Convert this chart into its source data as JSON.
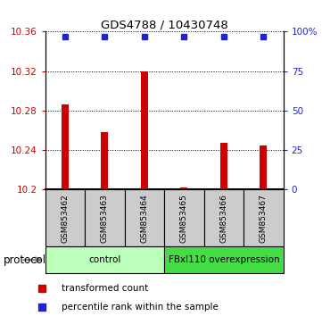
{
  "title": "GDS4788 / 10430748",
  "samples": [
    "GSM853462",
    "GSM853463",
    "GSM853464",
    "GSM853465",
    "GSM853466",
    "GSM853467"
  ],
  "red_values": [
    10.286,
    10.258,
    10.32,
    10.202,
    10.247,
    10.245
  ],
  "blue_values": [
    97,
    97,
    97,
    97,
    97,
    97
  ],
  "ylim_left": [
    10.2,
    10.36
  ],
  "ylim_right": [
    0,
    100
  ],
  "yticks_left": [
    10.2,
    10.24,
    10.28,
    10.32,
    10.36
  ],
  "yticks_right": [
    0,
    25,
    50,
    75,
    100
  ],
  "ytick_labels_left": [
    "10.2",
    "10.24",
    "10.28",
    "10.32",
    "10.36"
  ],
  "ytick_labels_right": [
    "0",
    "25",
    "50",
    "75",
    "100%"
  ],
  "red_color": "#cc0000",
  "blue_color": "#2222cc",
  "bar_base": 10.2,
  "groups": [
    {
      "label": "control",
      "indices": [
        0,
        1,
        2
      ],
      "color": "#bbffbb"
    },
    {
      "label": "FBxl110 overexpression",
      "indices": [
        3,
        4,
        5
      ],
      "color": "#44dd44"
    }
  ],
  "protocol_label": "protocol",
  "legend_items": [
    {
      "color": "#cc0000",
      "label": "transformed count"
    },
    {
      "color": "#2222cc",
      "label": "percentile rank within the sample"
    }
  ],
  "sample_box_color": "#cccccc",
  "bar_width": 0.18
}
